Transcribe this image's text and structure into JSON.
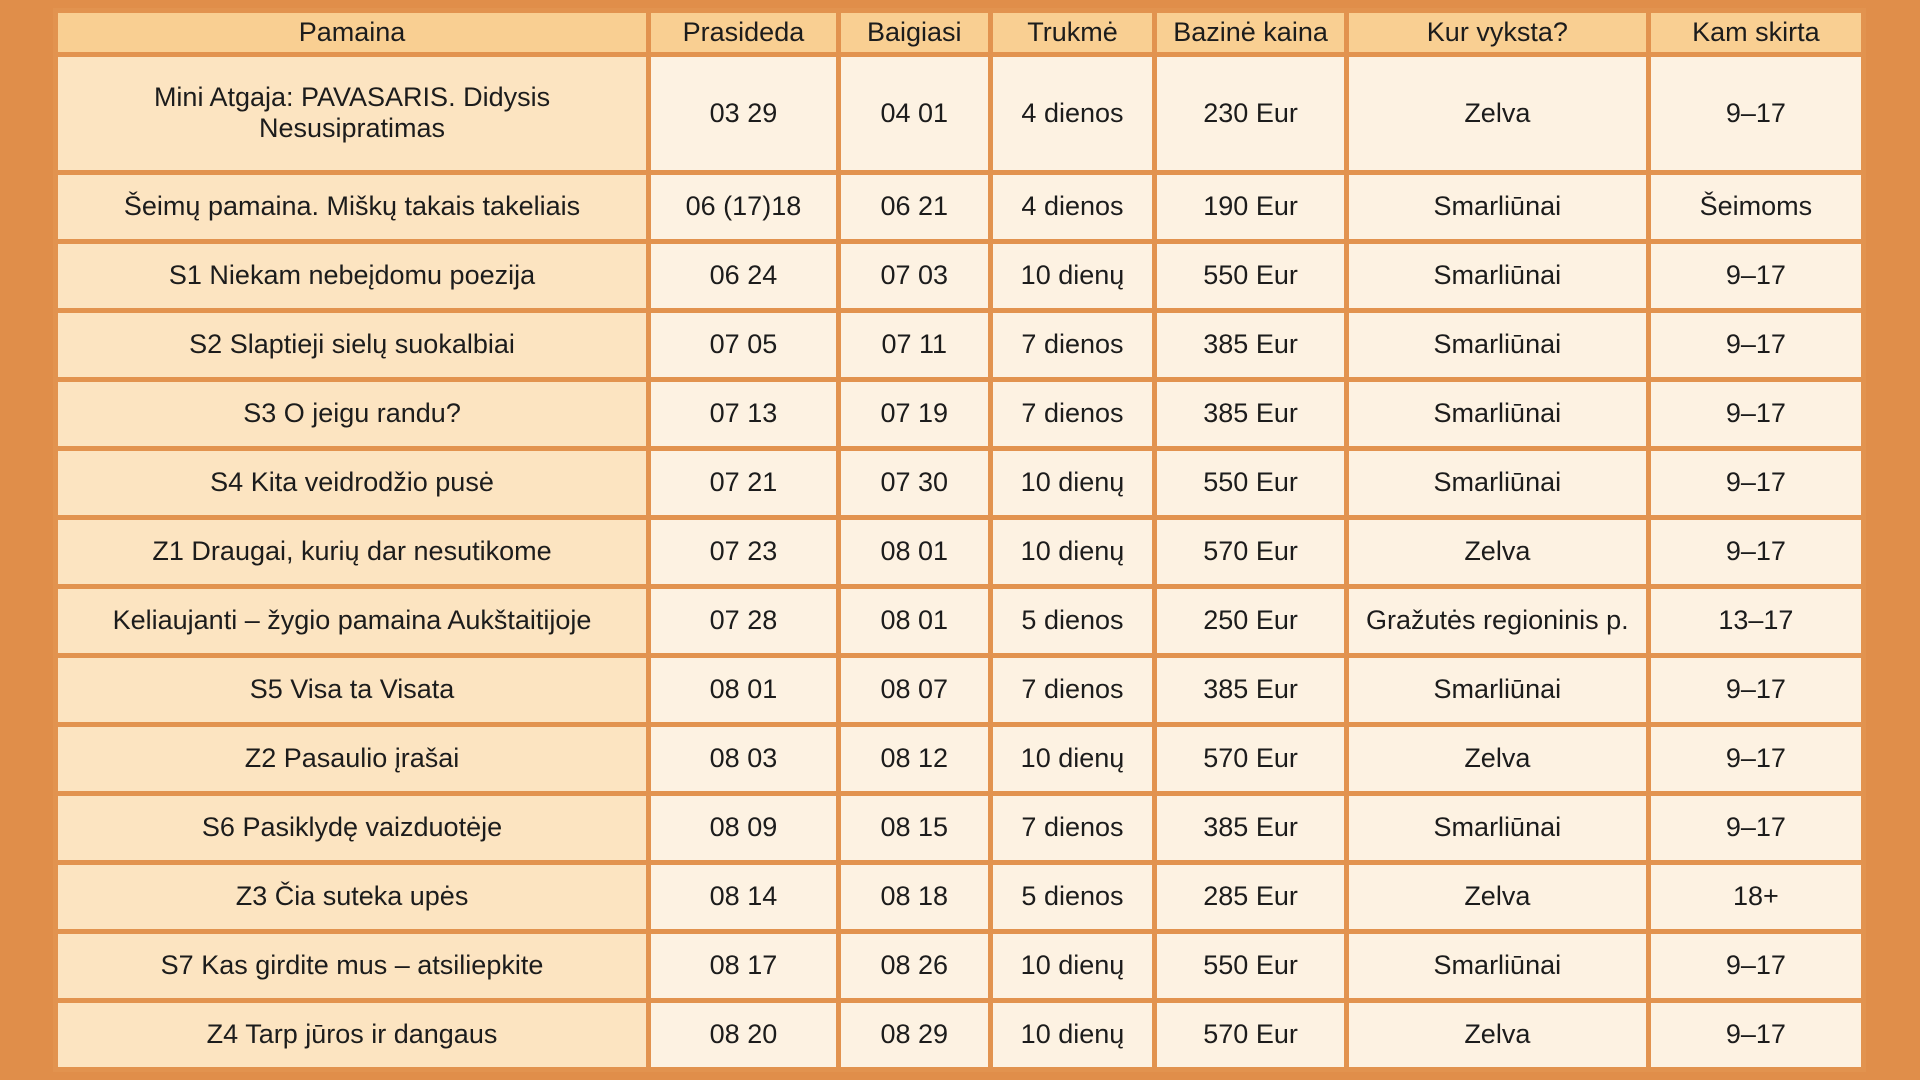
{
  "chart_data": {
    "type": "table",
    "columns": [
      "Pamaina",
      "Prasideda",
      "Baigiasi",
      "Trukmė",
      "Bazinė kaina",
      "Kur vyksta?",
      "Kam skirta"
    ],
    "rows": [
      [
        "Mini Atgaja: PAVASARIS. Didysis Nesusipratimas",
        "03 29",
        "04 01",
        "4 dienos",
        "230 Eur",
        "Zelva",
        "9–17"
      ],
      [
        "Šeimų pamaina. Miškų takais takeliais",
        "06 (17)18",
        "06 21",
        "4 dienos",
        "190 Eur",
        "Smarliūnai",
        "Šeimoms"
      ],
      [
        "S1 Niekam nebeįdomu poezija",
        "06 24",
        "07 03",
        "10 dienų",
        "550 Eur",
        "Smarliūnai",
        "9–17"
      ],
      [
        "S2 Slaptieji sielų suokalbiai",
        "07 05",
        "07 11",
        "7 dienos",
        "385 Eur",
        "Smarliūnai",
        "9–17"
      ],
      [
        "S3 O jeigu randu?",
        "07 13",
        "07 19",
        "7 dienos",
        "385 Eur",
        "Smarliūnai",
        "9–17"
      ],
      [
        "S4 Kita veidrodžio pusė",
        "07 21",
        "07 30",
        "10 dienų",
        "550 Eur",
        "Smarliūnai",
        "9–17"
      ],
      [
        "Z1 Draugai, kurių dar nesutikome",
        "07 23",
        "08 01",
        "10 dienų",
        "570 Eur",
        "Zelva",
        "9–17"
      ],
      [
        "Keliaujanti – žygio pamaina Aukštaitijoje",
        "07 28",
        "08 01",
        "5 dienos",
        "250 Eur",
        "Gražutės regioninis p.",
        "13–17"
      ],
      [
        "S5 Visa ta Visata",
        "08 01",
        "08 07",
        "7 dienos",
        "385 Eur",
        "Smarliūnai",
        "9–17"
      ],
      [
        "Z2 Pasaulio įrašai",
        "08 03",
        "08 12",
        "10 dienų",
        "570 Eur",
        "Zelva",
        "9–17"
      ],
      [
        "S6 Pasiklydę vaizduotėje",
        "08 09",
        "08 15",
        "7 dienos",
        "385 Eur",
        "Smarliūnai",
        "9–17"
      ],
      [
        "Z3 Čia suteka upės",
        "08 14",
        "08 18",
        "5 dienos",
        "285 Eur",
        "Zelva",
        "18+"
      ],
      [
        "S7 Kas girdite mus – atsiliepkite",
        "08 17",
        "08 26",
        "10 dienų",
        "550 Eur",
        "Smarliūnai",
        "9–17"
      ],
      [
        "Z4 Tarp jūros ir dangaus",
        "08 20",
        "08 29",
        "10 dienų",
        "570 Eur",
        "Zelva",
        "9–17"
      ]
    ]
  },
  "colors": {
    "page_background": "#e08e4a",
    "grid_border": "#e2934f",
    "header_background": "#f9cf92",
    "first_column_background": "#fce4c1",
    "cell_background": "#fdf2e2",
    "text": "#1c1c1c"
  }
}
